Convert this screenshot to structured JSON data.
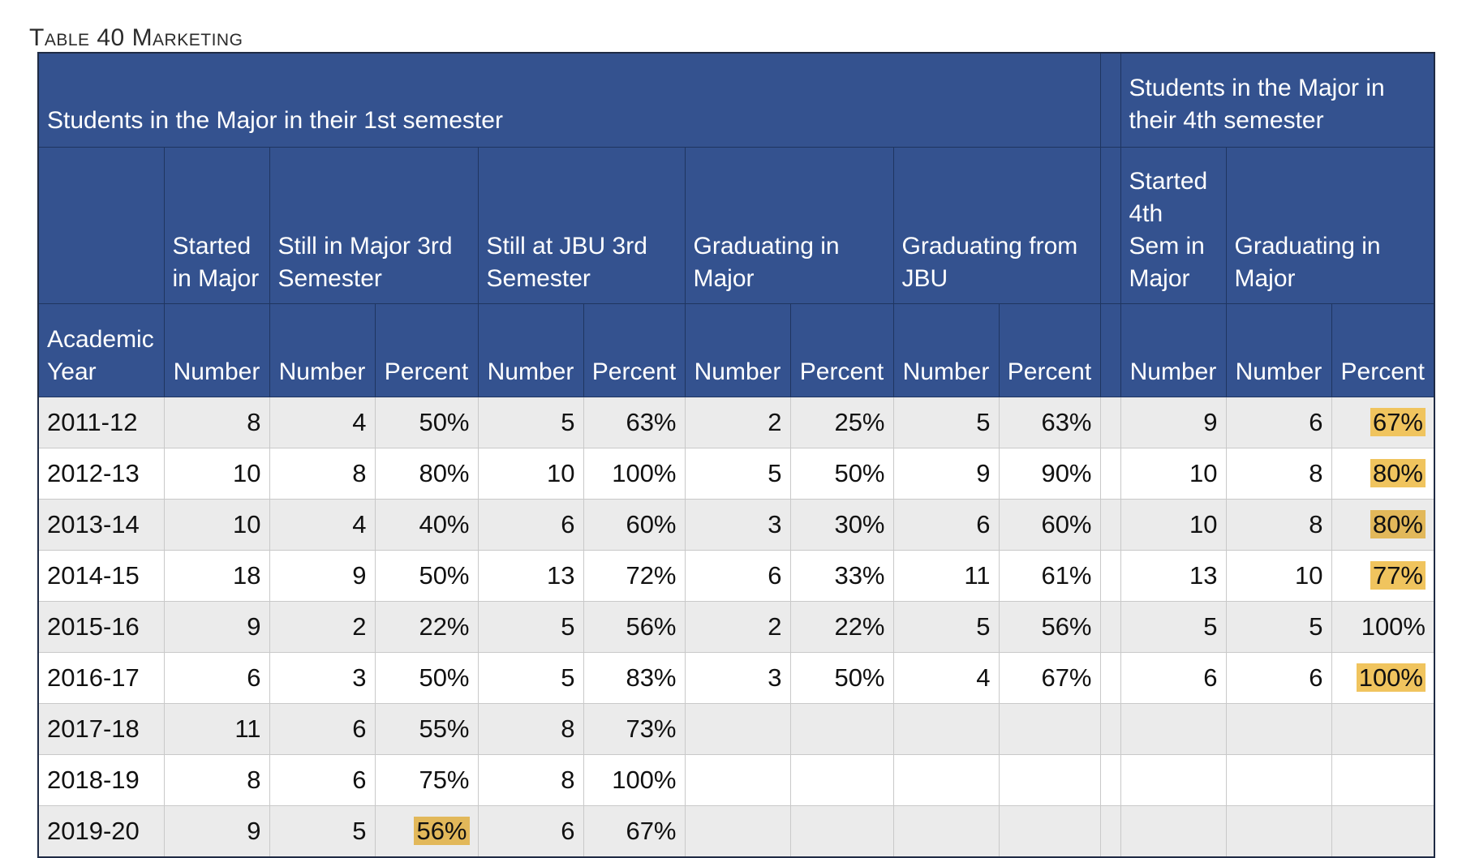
{
  "caption": "Table 40 Marketing",
  "header": {
    "group_first": "Students in the Major in their 1st semester",
    "group_fourth": "Students in the Major in their 4th semester",
    "col_started": "Started in Major",
    "col_still_major": "Still in Major 3rd Semester",
    "col_still_jbu": "Still at JBU 3rd Semester",
    "col_grad_major": "Graduating in Major",
    "col_grad_jbu": "Graduating from JBU",
    "col_started_4th": "Started 4th Sem in Major",
    "col_grad_major_4th": "Graduating in Major",
    "academic_year": "Academic Year",
    "number": "Number",
    "percent": "Percent"
  },
  "rows": [
    {
      "year": "2011-12",
      "started": "8",
      "sm_num": "4",
      "sm_pct": "50%",
      "sj_num": "5",
      "sj_pct": "63%",
      "gm_num": "2",
      "gm_pct": "25%",
      "gj_num": "5",
      "gj_pct": "63%",
      "s4_num": "9",
      "g4_num": "6",
      "g4_pct": "67%"
    },
    {
      "year": "2012-13",
      "started": "10",
      "sm_num": "8",
      "sm_pct": "80%",
      "sj_num": "10",
      "sj_pct": "100%",
      "gm_num": "5",
      "gm_pct": "50%",
      "gj_num": "9",
      "gj_pct": "90%",
      "s4_num": "10",
      "g4_num": "8",
      "g4_pct": "80%"
    },
    {
      "year": "2013-14",
      "started": "10",
      "sm_num": "4",
      "sm_pct": "40%",
      "sj_num": "6",
      "sj_pct": "60%",
      "gm_num": "3",
      "gm_pct": "30%",
      "gj_num": "6",
      "gj_pct": "60%",
      "s4_num": "10",
      "g4_num": "8",
      "g4_pct": "80%"
    },
    {
      "year": "2014-15",
      "started": "18",
      "sm_num": "9",
      "sm_pct": "50%",
      "sj_num": "13",
      "sj_pct": "72%",
      "gm_num": "6",
      "gm_pct": "33%",
      "gj_num": "11",
      "gj_pct": "61%",
      "s4_num": "13",
      "g4_num": "10",
      "g4_pct": "77%"
    },
    {
      "year": "2015-16",
      "started": "9",
      "sm_num": "2",
      "sm_pct": "22%",
      "sj_num": "5",
      "sj_pct": "56%",
      "gm_num": "2",
      "gm_pct": "22%",
      "gj_num": "5",
      "gj_pct": "56%",
      "s4_num": "5",
      "g4_num": "5",
      "g4_pct": "100%"
    },
    {
      "year": "2016-17",
      "started": "6",
      "sm_num": "3",
      "sm_pct": "50%",
      "sj_num": "5",
      "sj_pct": "83%",
      "gm_num": "3",
      "gm_pct": "50%",
      "gj_num": "4",
      "gj_pct": "67%",
      "s4_num": "6",
      "g4_num": "6",
      "g4_pct": "100%"
    },
    {
      "year": "2017-18",
      "started": "11",
      "sm_num": "6",
      "sm_pct": "55%",
      "sj_num": "8",
      "sj_pct": "73%",
      "gm_num": "",
      "gm_pct": "",
      "gj_num": "",
      "gj_pct": "",
      "s4_num": "",
      "g4_num": "",
      "g4_pct": ""
    },
    {
      "year": "2018-19",
      "started": "8",
      "sm_num": "6",
      "sm_pct": "75%",
      "sj_num": "8",
      "sj_pct": "100%",
      "gm_num": "",
      "gm_pct": "",
      "gj_num": "",
      "gj_pct": "",
      "s4_num": "",
      "g4_num": "",
      "g4_pct": ""
    },
    {
      "year": "2019-20",
      "started": "9",
      "sm_num": "5",
      "sm_pct": "56%",
      "sj_num": "6",
      "sj_pct": "67%",
      "gm_num": "",
      "gm_pct": "",
      "gj_num": "",
      "gj_pct": "",
      "s4_num": "",
      "g4_num": "",
      "g4_pct": ""
    }
  ],
  "highlights": {
    "gold": "#f0c45e",
    "tan": "#e2b85a",
    "header_blue": "#34528f"
  }
}
